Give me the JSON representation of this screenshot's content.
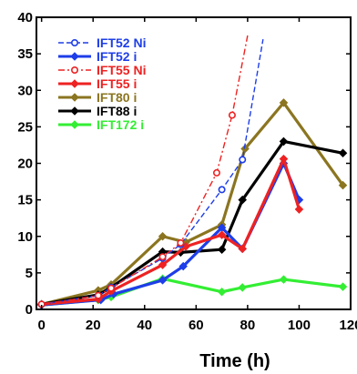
{
  "chart_data": {
    "type": "line",
    "title": "",
    "xlabel": "Time (h)",
    "ylabel": "",
    "xlim": [
      -2,
      120
    ],
    "ylim": [
      0,
      40
    ],
    "x_ticks": [
      0,
      20,
      40,
      60,
      80,
      100,
      120
    ],
    "y_ticks": [
      0,
      5,
      10,
      15,
      20,
      25,
      30,
      35,
      40
    ],
    "x_tick_labels": [
      "0",
      "20",
      "40",
      "60",
      "80",
      "100",
      "120"
    ],
    "y_tick_labels": [
      "0",
      "5",
      "10",
      "15",
      "20",
      "25",
      "30",
      "35",
      "40"
    ],
    "legend_position": "top-left",
    "series": [
      {
        "name": "IFT172 i",
        "color": "#33ee33",
        "style": "solid",
        "marker": "diamond",
        "x": [
          0,
          22,
          27,
          47,
          70,
          78,
          94,
          117
        ],
        "y": [
          0.6,
          1.3,
          1.7,
          4.2,
          2.4,
          3.0,
          4.1,
          3.1
        ]
      },
      {
        "name": "IFT80 i",
        "color": "#8b7520",
        "style": "solid",
        "marker": "diamond",
        "x": [
          0,
          22,
          27,
          47,
          56,
          70,
          79,
          94,
          117
        ],
        "y": [
          0.7,
          2.6,
          3.4,
          10.0,
          9.2,
          11.6,
          22.0,
          28.3,
          17.0
        ]
      },
      {
        "name": "IFT88 i",
        "color": "#000000",
        "style": "solid",
        "marker": "diamond",
        "x": [
          0,
          22,
          27,
          47,
          54,
          70,
          78,
          94,
          117
        ],
        "y": [
          0.7,
          2.0,
          3.0,
          7.9,
          7.8,
          8.2,
          15.0,
          23.0,
          21.4
        ]
      },
      {
        "name": "IFT52 i",
        "color": "#1e3ee8",
        "style": "solid",
        "marker": "diamond",
        "x": [
          0,
          23,
          28,
          47,
          55,
          70,
          78,
          94,
          100
        ],
        "y": [
          0.6,
          1.3,
          2.1,
          4.0,
          5.9,
          11.2,
          8.3,
          20.0,
          15.0
        ]
      },
      {
        "name": "IFT55 i",
        "color": "#ee2222",
        "style": "solid",
        "marker": "diamond",
        "x": [
          0,
          22,
          27,
          47,
          56,
          70,
          78,
          94,
          100
        ],
        "y": [
          0.7,
          1.4,
          2.5,
          6.1,
          8.6,
          10.2,
          8.3,
          20.6,
          13.7
        ]
      },
      {
        "name": "IFT52 Ni",
        "color": "#1e3ee8",
        "style": "dashed",
        "marker": "circle",
        "x": [
          0,
          22,
          27,
          47,
          54,
          70,
          78,
          86
        ],
        "y": [
          0.7,
          1.9,
          3.0,
          7.0,
          8.9,
          16.4,
          20.5,
          37.0
        ]
      },
      {
        "name": "IFT55 Ni",
        "color": "#ee2222",
        "style": "dashdot",
        "marker": "circle",
        "x": [
          0,
          22,
          27,
          47,
          54,
          68,
          74,
          80
        ],
        "y": [
          0.7,
          1.9,
          2.9,
          7.2,
          9.1,
          18.7,
          26.6,
          37.5
        ]
      }
    ],
    "legend_order": [
      "IFT52 Ni",
      "IFT52 i",
      "IFT55 Ni",
      "IFT55 i",
      "IFT80 i",
      "IFT88 i",
      "IFT172 i"
    ]
  }
}
